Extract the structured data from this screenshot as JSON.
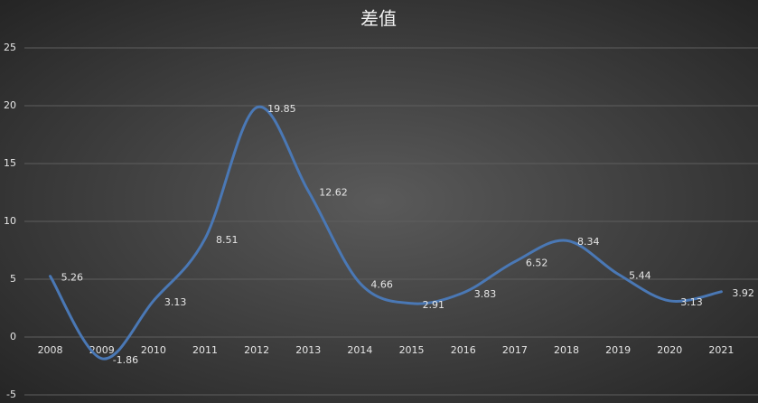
{
  "chart_data": {
    "type": "line",
    "title": "差值",
    "categories": [
      "2008",
      "2009",
      "2010",
      "2011",
      "2012",
      "2013",
      "2014",
      "2015",
      "2016",
      "2017",
      "2018",
      "2019",
      "2020",
      "2021"
    ],
    "values": [
      5.26,
      -1.86,
      3.13,
      8.51,
      19.85,
      12.62,
      4.66,
      2.91,
      3.83,
      6.52,
      8.34,
      5.44,
      3.13,
      3.92
    ],
    "color": "#4a78b5",
    "smooth": true,
    "ylim": [
      -5,
      25
    ],
    "yticks": [
      -5,
      0,
      5,
      10,
      15,
      20,
      25
    ],
    "grid": true
  }
}
